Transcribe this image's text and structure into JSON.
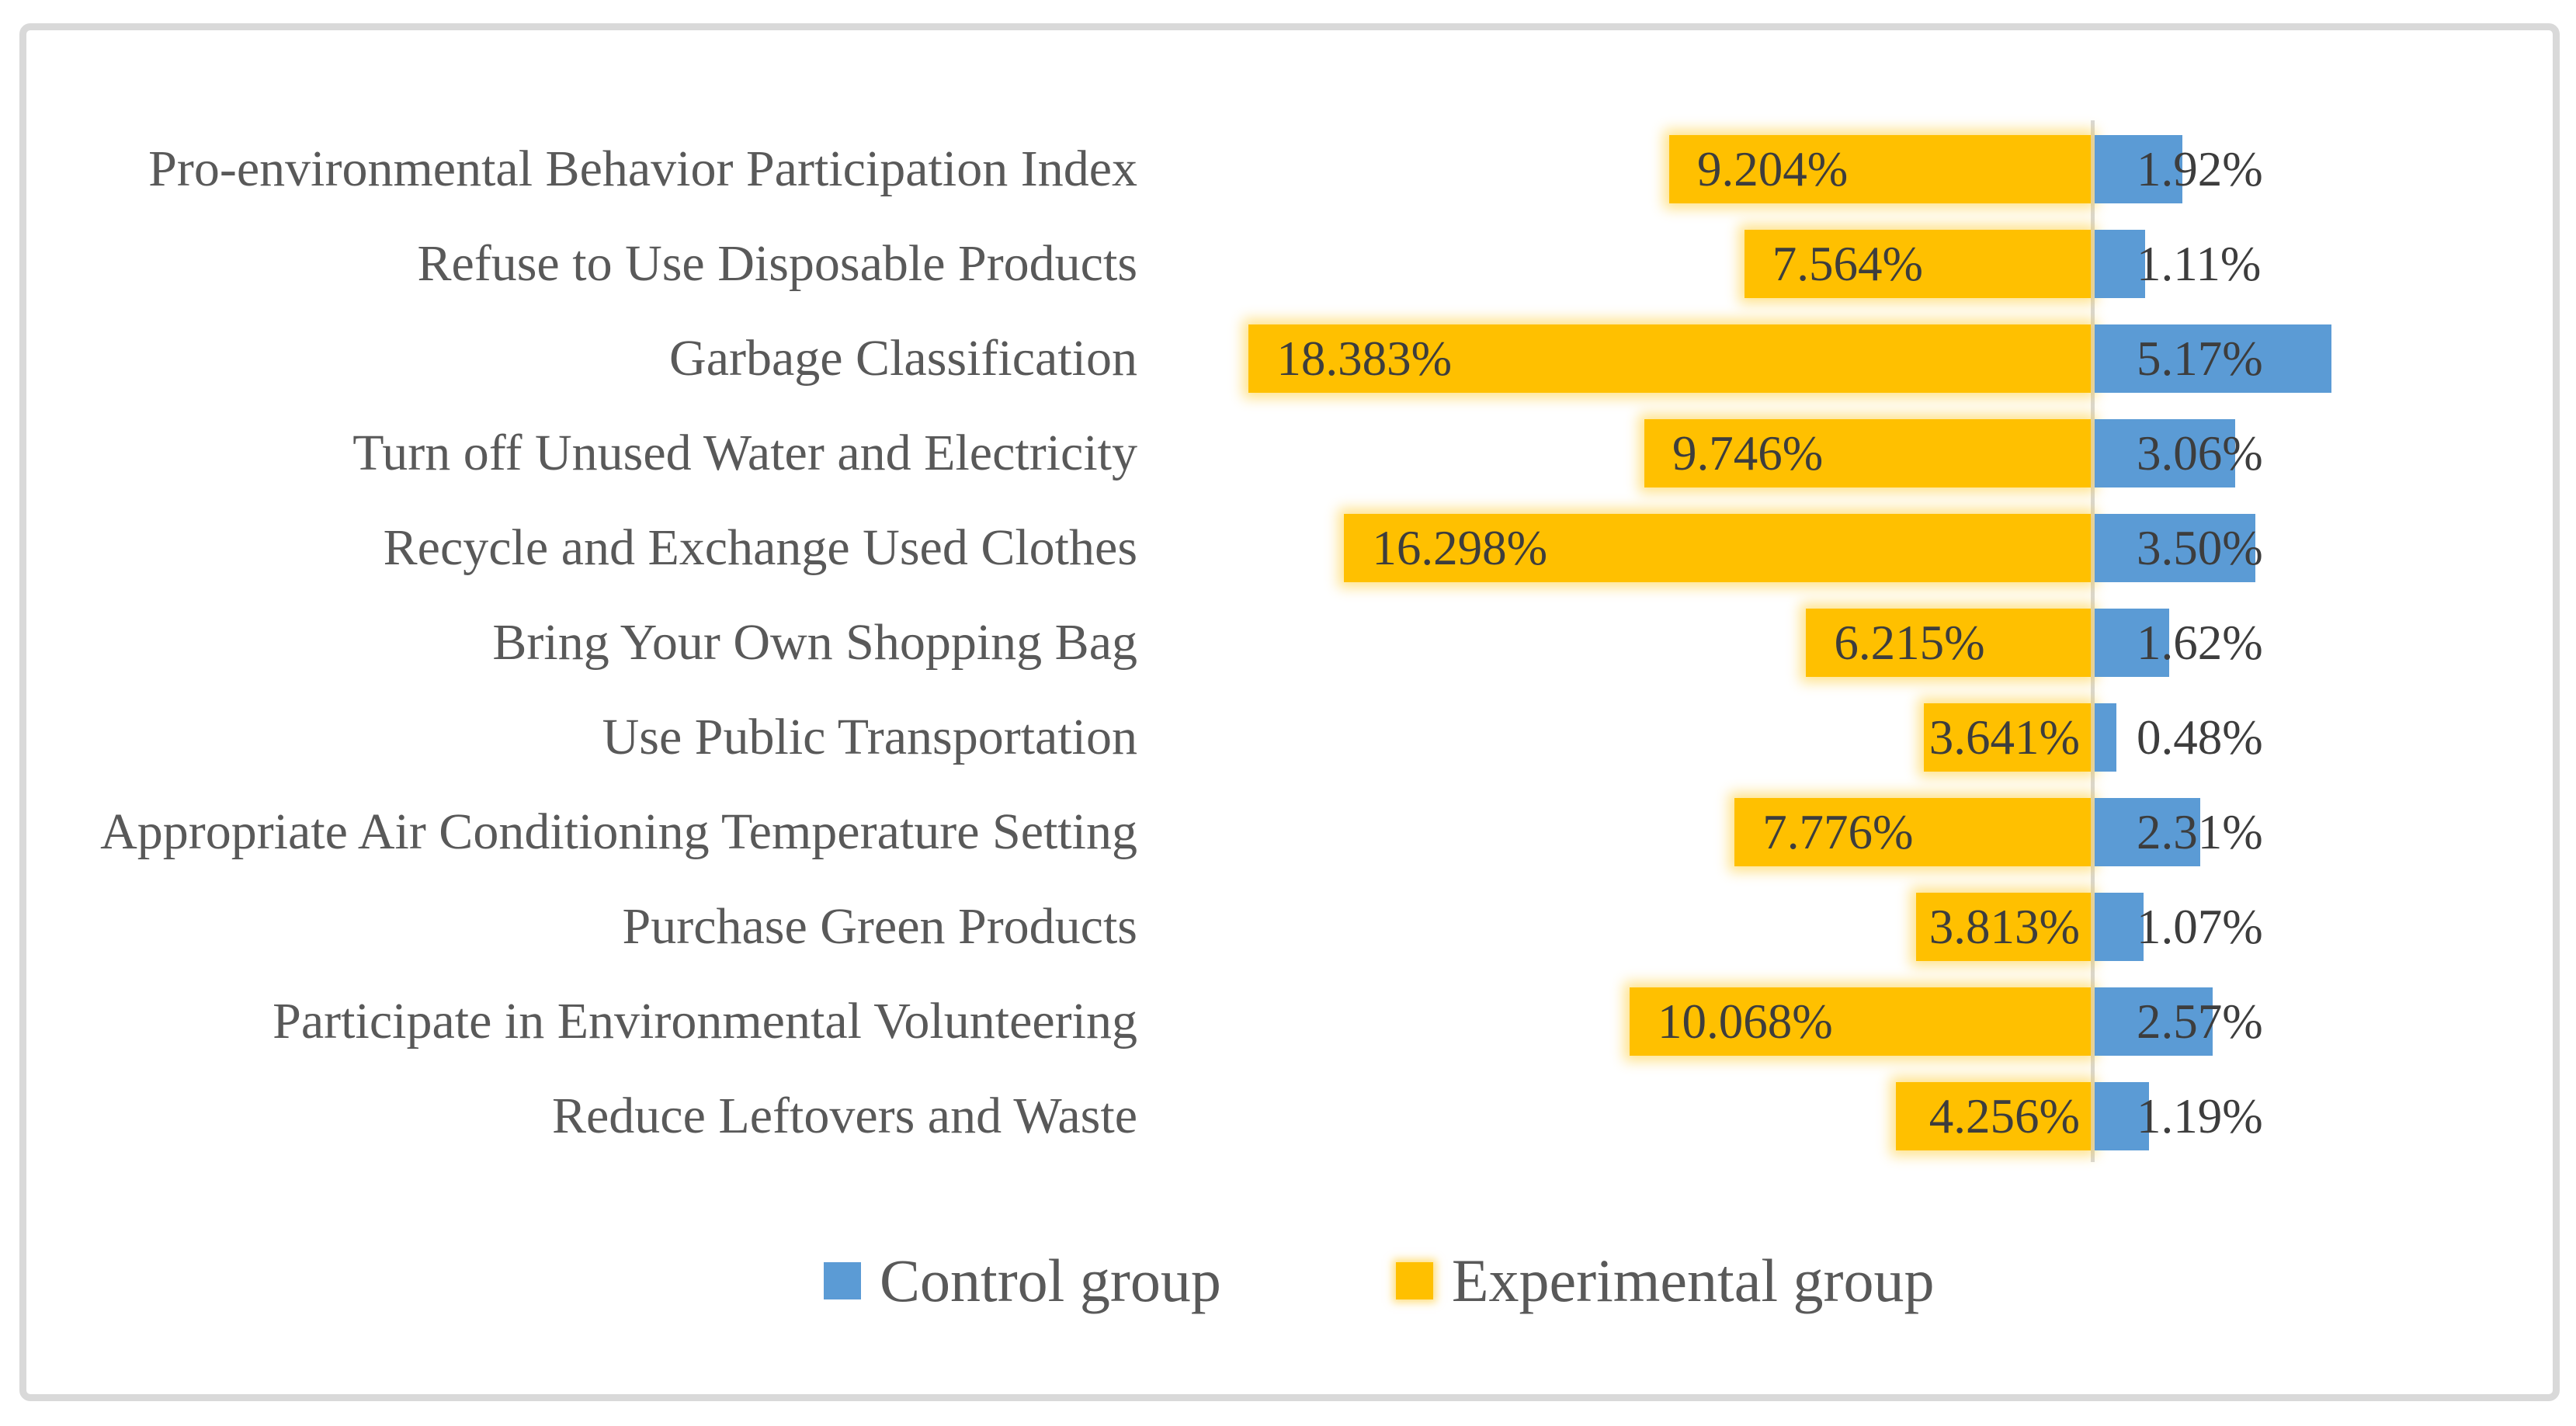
{
  "chart_data": {
    "type": "bar",
    "orientation": "horizontal-diverging",
    "title": "",
    "categories": [
      "Pro-environmental Behavior Participation Index",
      "Refuse to Use Disposable Products",
      "Garbage Classification",
      "Turn off Unused Water and Electricity",
      "Recycle and Exchange Used Clothes",
      "Bring Your Own Shopping Bag",
      "Use Public Transportation",
      "Appropriate Air Conditioning Temperature Setting",
      "Purchase Green Products",
      "Participate in Environmental Volunteering",
      "Reduce Leftovers and Waste"
    ],
    "series": [
      {
        "name": "Control group",
        "color": "#5B9BD5",
        "direction": "right",
        "values": [
          1.92,
          1.11,
          5.17,
          3.06,
          3.5,
          1.62,
          0.48,
          2.31,
          1.07,
          2.57,
          1.19
        ],
        "labels": [
          "1.92%",
          "1.11%",
          "5.17%",
          "3.06%",
          "3.50%",
          "1.62%",
          "0.48%",
          "2.31%",
          "1.07%",
          "2.57%",
          "1.19%"
        ]
      },
      {
        "name": "Experimental group",
        "color": "#FFC000",
        "direction": "left",
        "values": [
          9.204,
          7.564,
          18.383,
          9.746,
          16.298,
          6.215,
          3.641,
          7.776,
          3.813,
          10.068,
          4.256
        ],
        "labels": [
          "9.204%",
          "7.564%",
          "18.383%",
          "9.746%",
          "16.298%",
          "6.215%",
          "3.641%",
          "7.776%",
          "3.813%",
          "10.068%",
          "4.256%"
        ]
      }
    ],
    "xlim": [
      -20,
      10
    ],
    "grid": false,
    "axis_line_color": "#D9D9D9",
    "category_label_color": "#595959",
    "value_label_color": "#3D3D3D",
    "legend_position": "bottom"
  }
}
